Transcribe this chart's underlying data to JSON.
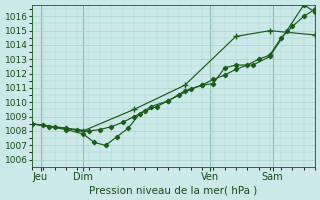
{
  "xlabel": "Pression niveau de la mer( hPa )",
  "ylim": [
    1005.5,
    1016.8
  ],
  "xlim": [
    0,
    100
  ],
  "yticks": [
    1006,
    1007,
    1008,
    1009,
    1010,
    1011,
    1012,
    1013,
    1014,
    1015,
    1016
  ],
  "xtick_positions": [
    3,
    18,
    63,
    85
  ],
  "xtick_labels": [
    "Jeu",
    "Dim",
    "Ven",
    "Sam"
  ],
  "bg_color": "#cce8e8",
  "grid_color": "#aad0d0",
  "line_color": "#1a5c1a",
  "line1": {
    "x": [
      0,
      4,
      8,
      12,
      16,
      20,
      24,
      28,
      32,
      36,
      40,
      44,
      48,
      52,
      56,
      60,
      64,
      68,
      72,
      76,
      80,
      84,
      88,
      92,
      96,
      100
    ],
    "y": [
      1008.5,
      1008.4,
      1008.3,
      1008.2,
      1008.1,
      1008.0,
      1008.1,
      1008.3,
      1008.6,
      1009.0,
      1009.4,
      1009.7,
      1010.1,
      1010.5,
      1010.9,
      1011.2,
      1011.6,
      1011.9,
      1012.3,
      1012.6,
      1013.0,
      1013.3,
      1014.5,
      1015.3,
      1016.0,
      1016.5
    ]
  },
  "line2": {
    "x": [
      0,
      6,
      12,
      18,
      22,
      26,
      30,
      34,
      38,
      42,
      48,
      54,
      60,
      64,
      68,
      72,
      78,
      84,
      90,
      96,
      100
    ],
    "y": [
      1008.5,
      1008.3,
      1008.1,
      1007.8,
      1007.2,
      1007.0,
      1007.6,
      1008.2,
      1009.2,
      1009.7,
      1010.1,
      1010.8,
      1011.2,
      1011.3,
      1012.4,
      1012.6,
      1012.6,
      1013.2,
      1015.0,
      1016.8,
      1016.3
    ]
  },
  "line3": {
    "x": [
      0,
      18,
      36,
      54,
      72,
      84,
      100
    ],
    "y": [
      1008.5,
      1008.0,
      1009.5,
      1011.2,
      1014.6,
      1015.0,
      1014.7
    ]
  }
}
